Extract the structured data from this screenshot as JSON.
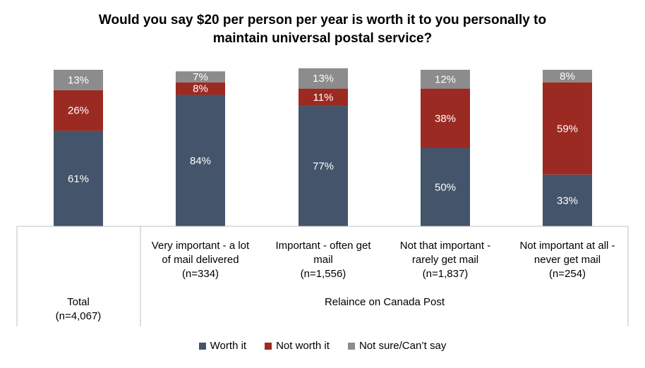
{
  "chart_data": {
    "type": "bar",
    "stacked": true,
    "title": [
      "Would you say $20 per person per year is worth it to you personally to",
      "maintain universal postal service?"
    ],
    "categories": [
      [
        "Total",
        "(n=4,067)"
      ],
      [
        "Very important - a lot",
        "of mail delivered",
        "(n=334)"
      ],
      [
        "Important - often get",
        "mail",
        "(n=1,556)"
      ],
      [
        "Not that important -",
        "rarely get mail",
        "(n=1,837)"
      ],
      [
        "Not important at all -",
        "never get mail",
        "(n=254)"
      ]
    ],
    "group_label": "Relaince on Canada Post",
    "series": [
      {
        "name": "Worth it",
        "color": "#44546A",
        "values": [
          61,
          84,
          77,
          50,
          33
        ]
      },
      {
        "name": "Not worth it",
        "color": "#9B2A22",
        "values": [
          26,
          8,
          11,
          38,
          59
        ]
      },
      {
        "name": "Not sure/Can’t say",
        "color": "#8C8C8C",
        "values": [
          13,
          7,
          13,
          12,
          8
        ]
      }
    ],
    "value_suffix": "%",
    "ylim": [
      0,
      100
    ],
    "legend_position": "bottom",
    "grid": false
  }
}
